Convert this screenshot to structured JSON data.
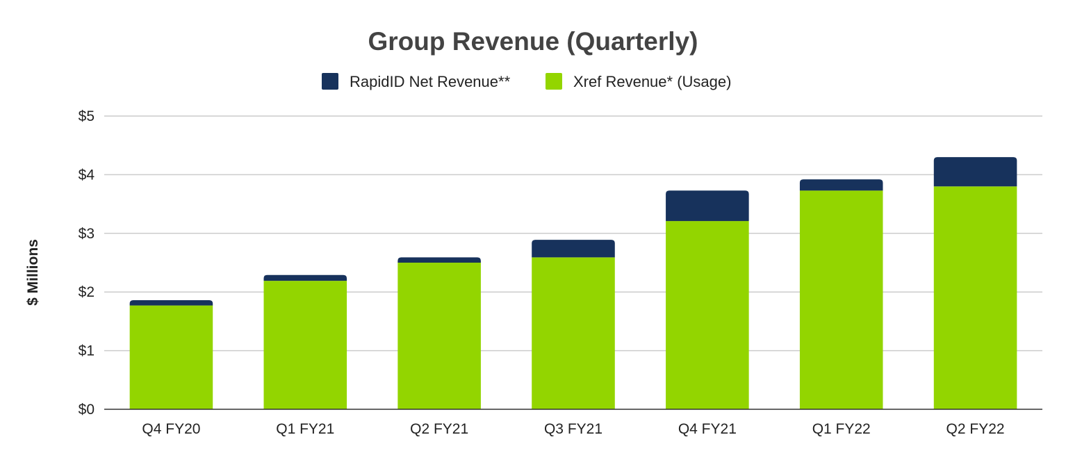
{
  "chart_data": {
    "type": "bar",
    "stacked": true,
    "title": "Group Revenue (Quarterly)",
    "xlabel": "",
    "ylabel": "$ Millions",
    "ylim": [
      0,
      5
    ],
    "yticks": [
      0,
      1,
      2,
      3,
      4,
      5
    ],
    "ytick_labels": [
      "$0",
      "$1",
      "$2",
      "$3",
      "$4",
      "$5"
    ],
    "grid": true,
    "legend_position": "top-center",
    "categories": [
      "Q4 FY20",
      "Q1 FY21",
      "Q2 FY21",
      "Q3 FY21",
      "Q4 FY21",
      "Q1 FY22",
      "Q2 FY22"
    ],
    "series": [
      {
        "name": "Xref Revenue* (Usage)",
        "color": "#93d500",
        "values": [
          1.77,
          2.19,
          2.5,
          2.59,
          3.21,
          3.73,
          3.8
        ]
      },
      {
        "name": "RapidID Net Revenue**",
        "color": "#17325c",
        "values": [
          0.09,
          0.1,
          0.09,
          0.3,
          0.52,
          0.19,
          0.5
        ]
      }
    ],
    "legend_order": [
      1,
      0
    ]
  }
}
